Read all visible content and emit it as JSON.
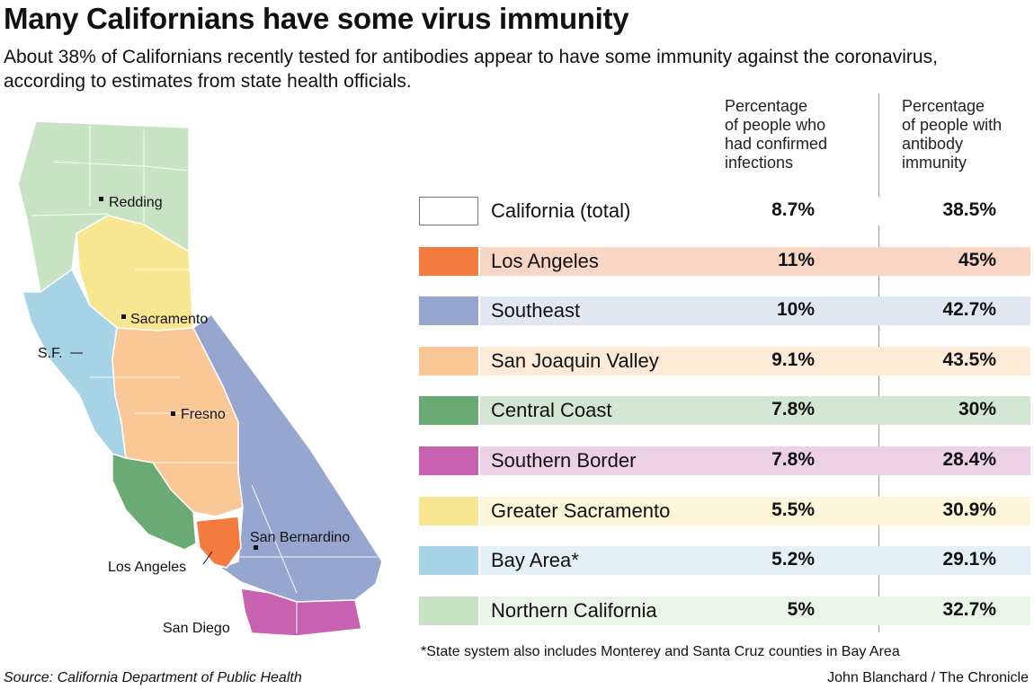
{
  "title": "Many Californians have some virus immunity",
  "subtitle": "About 38% of Californians recently tested for antibodies appear to have some immunity against the coronavirus, according to estimates from state health officials.",
  "columns": {
    "confirmed": "Percentage\nof people who\nhad confirmed\ninfections",
    "antibody": "Percentage\nof people with\nantibody\nimmunity"
  },
  "chart_data": {
    "type": "table",
    "rows": [
      {
        "region": "California (total)",
        "confirmed": "8.7%",
        "antibody": "38.5%",
        "color": "#ffffff",
        "band": "#ffffff"
      },
      {
        "region": "Los Angeles",
        "confirmed": "11%",
        "antibody": "45%",
        "color": "#f47b3f",
        "band": "#f9d6c4"
      },
      {
        "region": "Southeast",
        "confirmed": "10%",
        "antibody": "42.7%",
        "color": "#97a6cf",
        "band": "#e2e6f1"
      },
      {
        "region": "San Joaquin Valley",
        "confirmed": "9.1%",
        "antibody": "43.5%",
        "color": "#f9c896",
        "band": "#fdebd8"
      },
      {
        "region": "Central Coast",
        "confirmed": "7.8%",
        "antibody": "30%",
        "color": "#6aab73",
        "band": "#d3e6d2"
      },
      {
        "region": "Southern Border",
        "confirmed": "7.8%",
        "antibody": "28.4%",
        "color": "#c761b0",
        "band": "#ecd0e6"
      },
      {
        "region": "Greater Sacramento",
        "confirmed": "5.5%",
        "antibody": "30.9%",
        "color": "#f9e690",
        "band": "#fdf6d8"
      },
      {
        "region": "Bay Area*",
        "confirmed": "5.2%",
        "antibody": "29.1%",
        "color": "#a6d3e6",
        "band": "#e3f0f6"
      },
      {
        "region": "Northern California",
        "confirmed": "5%",
        "antibody": "32.7%",
        "color": "#c8e3c3",
        "band": "#eaf4e8"
      }
    ]
  },
  "map": {
    "cities": {
      "redding": "Redding",
      "sacramento": "Sacramento",
      "sf": "S.F.",
      "fresno": "Fresno",
      "san_bernardino": "San Bernardino",
      "los_angeles": "Los Angeles",
      "san_diego": "San Diego"
    }
  },
  "footnote": "*State system also includes Monterey and Santa Cruz counties in Bay Area",
  "source": "Source: California Department of Public Health",
  "credit": "John Blanchard / The Chronicle"
}
